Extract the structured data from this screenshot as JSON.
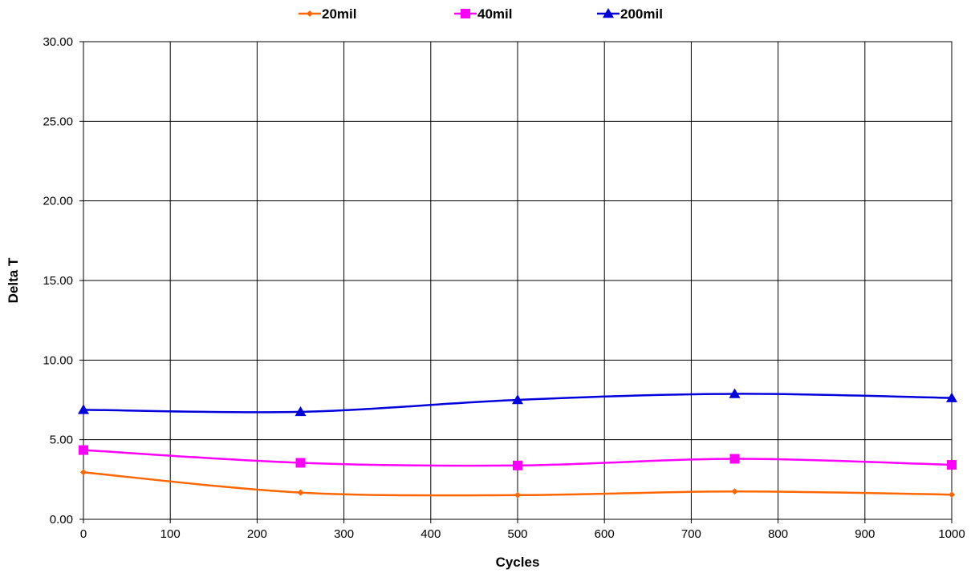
{
  "chart_data": {
    "type": "line",
    "title": "",
    "xlabel": "Cycles",
    "ylabel": "Delta T",
    "xlim": [
      0,
      1000
    ],
    "ylim": [
      0,
      30
    ],
    "x_ticks": [
      "0",
      "100",
      "200",
      "300",
      "400",
      "500",
      "600",
      "700",
      "800",
      "900",
      "1000"
    ],
    "y_ticks": [
      "0.00",
      "5.00",
      "10.00",
      "15.00",
      "20.00",
      "25.00",
      "30.00"
    ],
    "grid": true,
    "legend_position": "top",
    "x": [
      0,
      250,
      500,
      750,
      1000
    ],
    "series": [
      {
        "name": "20mil",
        "color": "#ff6600",
        "marker": "diamond",
        "values": [
          2.95,
          1.68,
          1.52,
          1.75,
          1.55
        ]
      },
      {
        "name": "40mil",
        "color": "#ff00ff",
        "marker": "square",
        "values": [
          4.35,
          3.55,
          3.38,
          3.8,
          3.42
        ]
      },
      {
        "name": "200mil",
        "color": "#0000dd",
        "marker": "triangle",
        "values": [
          6.88,
          6.75,
          7.5,
          7.88,
          7.62
        ]
      }
    ]
  }
}
